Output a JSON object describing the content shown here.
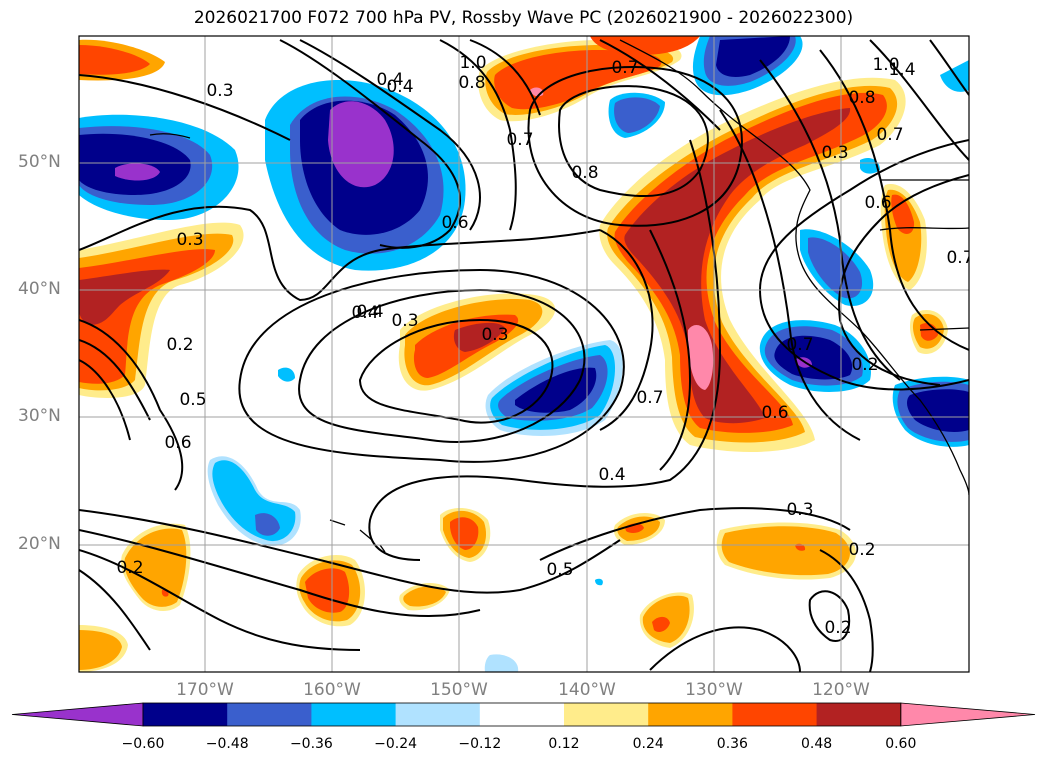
{
  "title": "2026021700 F072 700 hPa PV, Rossby Wave PC (2026021900 - 2026022300)",
  "lat_labels": [
    "50°N",
    "40°N",
    "30°N",
    "20°N"
  ],
  "lon_labels": [
    "170°W",
    "160°W",
    "150°W",
    "140°W",
    "130°W",
    "120°W"
  ],
  "colorbar": {
    "tick_labels": [
      "−0.60",
      "−0.48",
      "−0.36",
      "−0.24",
      "−0.12",
      "0.12",
      "0.24",
      "0.36",
      "0.48",
      "0.60"
    ],
    "colors": [
      "#9932CC",
      "#00008B",
      "#3A5FCD",
      "#00BFFF",
      "#B0E2FF",
      "#FFFFFF",
      "#FFEC8B",
      "#FFA500",
      "#FF4500",
      "#B22222",
      "#FF88AA"
    ]
  },
  "contour_labels": [
    "0.3",
    "0.3",
    "0.4",
    "0.4",
    "1.0",
    "0.8",
    "0.7",
    "0.7",
    "0.8",
    "0.6",
    "0.3",
    "0.4",
    "0.3",
    "0.2",
    "0.5",
    "0.6",
    "0.7",
    "0.6",
    "0.4",
    "0.5",
    "0.3",
    "0.2",
    "0.2",
    "0.2",
    "0.3",
    "0.7",
    "0.8",
    "1.0",
    "1.4",
    "0.6",
    "0.7",
    "0.2",
    "0.7",
    "0.4"
  ]
}
